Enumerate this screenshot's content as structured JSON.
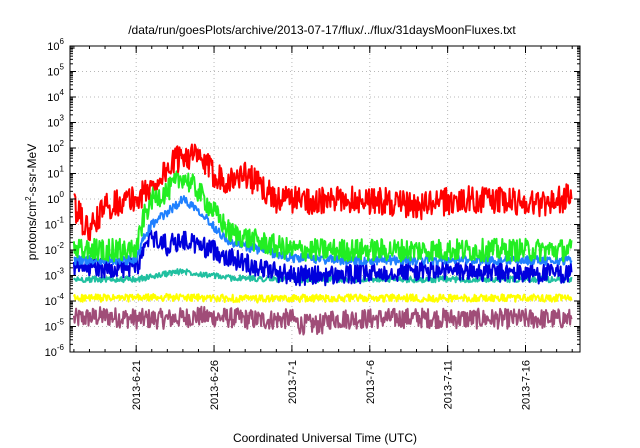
{
  "chart_data": {
    "type": "line",
    "title": "/data/run/goesPlots/archive/2013-07-17/flux/../flux/31daysMoonFluxes.txt",
    "xlabel": "Coordinated Universal Time (UTC)",
    "ylabel": {
      "pre": "protons/cm",
      "sup": "2",
      "post": "-s-sr-MeV"
    },
    "yscale": "log",
    "ylim": [
      1e-06,
      1000000.0
    ],
    "y_ticks": [
      {
        "value": 1e-06,
        "base": "10",
        "exp": "-6"
      },
      {
        "value": 1e-05,
        "base": "10",
        "exp": "-5"
      },
      {
        "value": 0.0001,
        "base": "10",
        "exp": "-4"
      },
      {
        "value": 0.001,
        "base": "10",
        "exp": "-3"
      },
      {
        "value": 0.01,
        "base": "10",
        "exp": "-2"
      },
      {
        "value": 0.1,
        "base": "10",
        "exp": "-1"
      },
      {
        "value": 1.0,
        "base": "10",
        "exp": "0"
      },
      {
        "value": 10.0,
        "base": "10",
        "exp": "1"
      },
      {
        "value": 100.0,
        "base": "10",
        "exp": "2"
      },
      {
        "value": 1000.0,
        "base": "10",
        "exp": "3"
      },
      {
        "value": 10000.0,
        "base": "10",
        "exp": "4"
      },
      {
        "value": 100000.0,
        "base": "10",
        "exp": "5"
      },
      {
        "value": 1000000.0,
        "base": "10",
        "exp": "6"
      }
    ],
    "xlim": [
      "2013-06-16T18:00",
      "2013-07-19T12:00"
    ],
    "x_ticks": [
      {
        "value": "2013-06-21",
        "label": "2013-6-21"
      },
      {
        "value": "2013-06-26",
        "label": "2013-6-26"
      },
      {
        "value": "2013-07-01",
        "label": "2013-7-1"
      },
      {
        "value": "2013-07-06",
        "label": "2013-7-6"
      },
      {
        "value": "2013-07-11",
        "label": "2013-7-11"
      },
      {
        "value": "2013-07-16",
        "label": "2013-7-16"
      }
    ],
    "grid": true,
    "legend": "none",
    "series": [
      {
        "color": "#a04d78",
        "x": [
          "2013-06-17",
          "2013-06-19",
          "2013-06-21",
          "2013-06-23",
          "2013-06-25",
          "2013-06-27",
          "2013-06-29",
          "2013-07-01",
          "2013-07-01T12:00",
          "2013-07-03",
          "2013-07-03T12:00",
          "2013-07-06",
          "2013-07-09",
          "2013-07-12",
          "2013-07-15",
          "2013-07-19"
        ],
        "y": [
          2e-05,
          2.5e-05,
          2e-05,
          2e-05,
          2.5e-05,
          2.2e-05,
          1.8e-05,
          2e-05,
          1.2e-05,
          1.2e-05,
          2e-05,
          2e-05,
          2.2e-05,
          2e-05,
          2e-05,
          2e-05
        ],
        "band_factor": 2.5
      },
      {
        "color": "#ffff00",
        "x": [
          "2013-06-17",
          "2013-06-20",
          "2013-06-23",
          "2013-06-26",
          "2013-06-29",
          "2013-07-02",
          "2013-07-05",
          "2013-07-08",
          "2013-07-11",
          "2013-07-14",
          "2013-07-19"
        ],
        "y": [
          0.00013,
          0.00013,
          0.00014,
          0.00013,
          0.00012,
          0.00013,
          0.00013,
          0.00013,
          0.00013,
          0.00013,
          0.00013
        ],
        "band_factor": 1.4
      },
      {
        "color": "#20c0a0",
        "x": [
          "2013-06-17",
          "2013-06-21",
          "2013-06-22",
          "2013-06-23",
          "2013-06-24",
          "2013-06-25",
          "2013-06-27",
          "2013-07-01",
          "2013-07-05",
          "2013-07-10",
          "2013-07-19"
        ],
        "y": [
          0.0007,
          0.0007,
          0.0009,
          0.0012,
          0.0015,
          0.0012,
          0.0008,
          0.0007,
          0.0007,
          0.0007,
          0.0007
        ],
        "band_factor": 1.3
      },
      {
        "color": "#0000dd",
        "x": [
          "2013-06-17",
          "2013-06-21",
          "2013-06-21T12:00",
          "2013-06-22",
          "2013-06-23",
          "2013-06-24",
          "2013-06-25",
          "2013-06-26",
          "2013-06-27",
          "2013-06-29",
          "2013-07-01",
          "2013-07-04",
          "2013-07-08",
          "2013-07-12",
          "2013-07-16",
          "2013-07-19"
        ],
        "y": [
          0.002,
          0.002,
          0.01,
          0.03,
          0.015,
          0.025,
          0.015,
          0.01,
          0.005,
          0.002,
          0.001,
          0.001,
          0.0015,
          0.0015,
          0.0012,
          0.0012
        ],
        "band_factor": 2.5
      },
      {
        "color": "#2080ff",
        "x": [
          "2013-06-17",
          "2013-06-21",
          "2013-06-21T12:00",
          "2013-06-22",
          "2013-06-23",
          "2013-06-24",
          "2013-06-25",
          "2013-06-26",
          "2013-06-27",
          "2013-06-29",
          "2013-07-01",
          "2013-07-04",
          "2013-07-08",
          "2013-07-12",
          "2013-07-16",
          "2013-07-19"
        ],
        "y": [
          0.004,
          0.004,
          0.03,
          0.1,
          0.3,
          1,
          0.4,
          0.08,
          0.02,
          0.01,
          0.005,
          0.004,
          0.004,
          0.004,
          0.004,
          0.004
        ],
        "band_factor": 1.5
      },
      {
        "color": "#22ee22",
        "x": [
          "2013-06-17",
          "2013-06-21",
          "2013-06-21T12:00",
          "2013-06-22",
          "2013-06-23",
          "2013-06-24",
          "2013-06-25",
          "2013-06-26",
          "2013-06-27",
          "2013-06-29",
          "2013-07-01",
          "2013-07-04",
          "2013-07-08",
          "2013-07-12",
          "2013-07-16",
          "2013-07-19"
        ],
        "y": [
          0.01,
          0.01,
          0.2,
          1,
          2,
          8,
          2,
          0.3,
          0.05,
          0.02,
          0.01,
          0.01,
          0.01,
          0.01,
          0.01,
          0.01
        ],
        "band_factor": 2.8
      },
      {
        "color": "#ff0000",
        "x": [
          "2013-06-17",
          "2013-06-18",
          "2013-06-19",
          "2013-06-20",
          "2013-06-21",
          "2013-06-22",
          "2013-06-23",
          "2013-06-24",
          "2013-06-25",
          "2013-06-26",
          "2013-06-27",
          "2013-06-28",
          "2013-06-29",
          "2013-06-30",
          "2013-07-01",
          "2013-07-03",
          "2013-07-05",
          "2013-07-07",
          "2013-07-09",
          "2013-07-11",
          "2013-07-13",
          "2013-07-15",
          "2013-07-17",
          "2013-07-19"
        ],
        "y": [
          0.5,
          0.05,
          0.5,
          0.8,
          1,
          3,
          15,
          60,
          40,
          10,
          5,
          10,
          3,
          1,
          1,
          0.8,
          1,
          0.8,
          0.5,
          0.8,
          1,
          0.8,
          0.7,
          1.2
        ],
        "band_factor": 3.5
      }
    ]
  }
}
